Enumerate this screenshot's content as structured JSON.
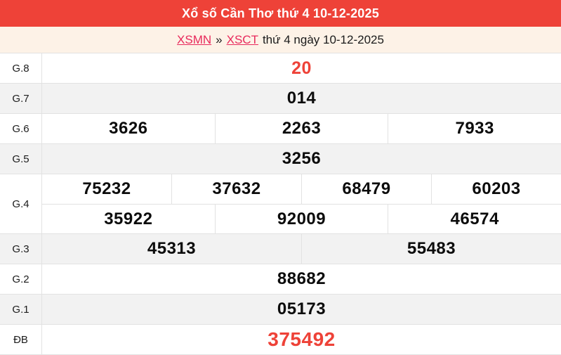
{
  "header": {
    "title": "Xổ số Cần Thơ thứ 4 10-12-2025",
    "bg_color": "#ee4238",
    "text_color": "#ffffff"
  },
  "breadcrumb": {
    "link_region": "XSMN",
    "separator": "»",
    "link_province": "XSCT",
    "suffix": "thứ 4 ngày 10-12-2025",
    "bg_color": "#fdf2e7",
    "link_color": "#e8295b"
  },
  "table": {
    "zebra_color": "#f2f2f2",
    "border_color": "#e2e2e2",
    "number_color": "#0c0c0c",
    "highlight_color": "#ee4238",
    "rows": [
      {
        "label": "G.8",
        "highlight": true,
        "groups": [
          [
            "20"
          ]
        ]
      },
      {
        "label": "G.7",
        "highlight": false,
        "groups": [
          [
            "014"
          ]
        ]
      },
      {
        "label": "G.6",
        "highlight": false,
        "groups": [
          [
            "3626",
            "2263",
            "7933"
          ]
        ]
      },
      {
        "label": "G.5",
        "highlight": false,
        "groups": [
          [
            "3256"
          ]
        ]
      },
      {
        "label": "G.4",
        "highlight": false,
        "groups": [
          [
            "75232",
            "37632",
            "68479",
            "60203"
          ],
          [
            "35922",
            "92009",
            "46574"
          ]
        ]
      },
      {
        "label": "G.3",
        "highlight": false,
        "groups": [
          [
            "45313",
            "55483"
          ]
        ]
      },
      {
        "label": "G.2",
        "highlight": false,
        "groups": [
          [
            "88682"
          ]
        ]
      },
      {
        "label": "G.1",
        "highlight": false,
        "groups": [
          [
            "05173"
          ]
        ]
      },
      {
        "label": "ĐB",
        "highlight": true,
        "groups": [
          [
            "375492"
          ]
        ]
      }
    ]
  }
}
